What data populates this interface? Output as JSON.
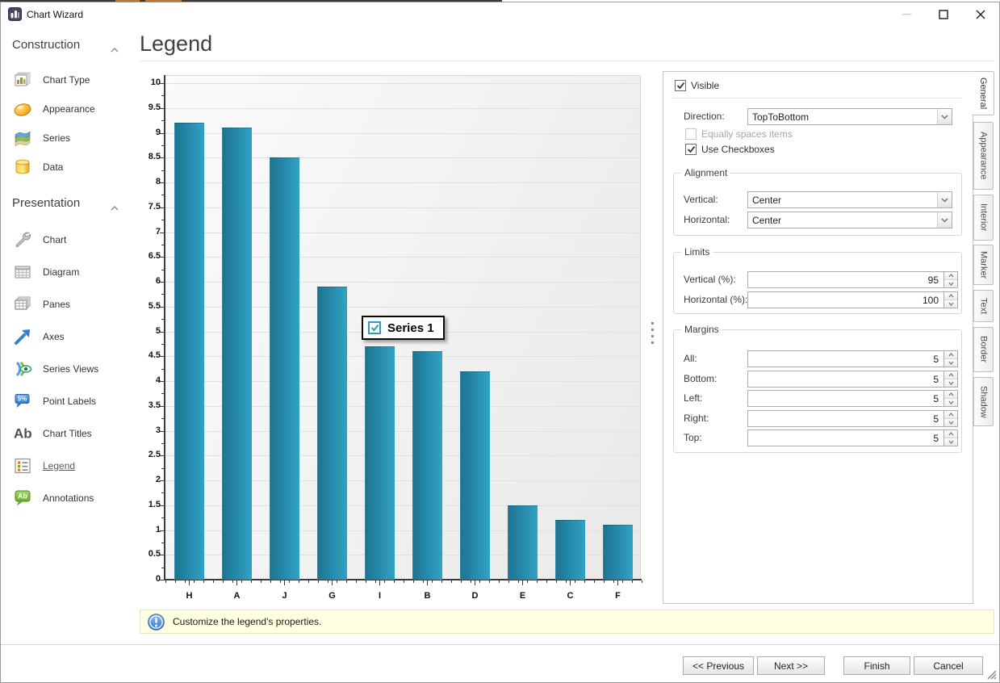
{
  "window": {
    "title": "Chart Wizard"
  },
  "sidebar": {
    "sections": [
      {
        "label": "Construction",
        "items": [
          {
            "label": "Chart Type",
            "icon": "chart-type-icon"
          },
          {
            "label": "Appearance",
            "icon": "appearance-icon"
          },
          {
            "label": "Series",
            "icon": "series-icon"
          },
          {
            "label": "Data",
            "icon": "data-icon"
          }
        ]
      },
      {
        "label": "Presentation",
        "items": [
          {
            "label": "Chart",
            "icon": "chart-icon"
          },
          {
            "label": "Diagram",
            "icon": "diagram-icon"
          },
          {
            "label": "Panes",
            "icon": "panes-icon"
          },
          {
            "label": "Axes",
            "icon": "axes-icon"
          },
          {
            "label": "Series Views",
            "icon": "series-views-icon"
          },
          {
            "label": "Point Labels",
            "icon": "point-labels-icon"
          },
          {
            "label": "Chart Titles",
            "icon": "chart-titles-icon"
          },
          {
            "label": "Legend",
            "icon": "legend-icon",
            "selected": true
          },
          {
            "label": "Annotations",
            "icon": "annotations-icon"
          }
        ]
      }
    ]
  },
  "main": {
    "title": "Legend"
  },
  "chart_data": {
    "type": "bar",
    "categories": [
      "H",
      "A",
      "J",
      "G",
      "I",
      "B",
      "D",
      "E",
      "C",
      "F"
    ],
    "values": [
      9.2,
      9.1,
      8.5,
      5.9,
      4.7,
      4.6,
      4.2,
      1.5,
      1.2,
      1.1
    ],
    "title": "",
    "xlabel": "",
    "ylabel": "",
    "ylim": [
      0,
      10
    ],
    "ytick_step": 0.5,
    "grid": true,
    "bar_color": "#2191b4",
    "legend": {
      "label": "Series 1",
      "checkbox": true,
      "checked": true,
      "position": "center-overlay"
    }
  },
  "properties": {
    "visible": {
      "label": "Visible",
      "checked": true
    },
    "direction": {
      "label": "Direction:",
      "value": "TopToBottom"
    },
    "equally_spaced": {
      "label": "Equally spaces items",
      "checked": false,
      "enabled": false
    },
    "use_checkboxes": {
      "label": "Use Checkboxes",
      "checked": true
    },
    "alignment": {
      "title": "Alignment",
      "rows": [
        {
          "label": "Vertical:",
          "value": "Center"
        },
        {
          "label": "Horizontal:",
          "value": "Center"
        }
      ]
    },
    "limits": {
      "title": "Limits",
      "rows": [
        {
          "label": "Vertical (%):",
          "value": "95"
        },
        {
          "label": "Horizontal (%):",
          "value": "100"
        }
      ]
    },
    "margins": {
      "title": "Margins",
      "rows": [
        {
          "label": "All:",
          "value": "5"
        },
        {
          "label": "Bottom:",
          "value": "5"
        },
        {
          "label": "Left:",
          "value": "5"
        },
        {
          "label": "Right:",
          "value": "5"
        },
        {
          "label": "Top:",
          "value": "5"
        }
      ]
    }
  },
  "side_tabs": [
    "General",
    "Appearance",
    "Interior",
    "Marker",
    "Text",
    "Border",
    "Shadow"
  ],
  "side_tabs_active": "General",
  "infobar": {
    "text": "Customize the legend's properties."
  },
  "footer": {
    "buttons": [
      {
        "label": "<< Previous"
      },
      {
        "label": "Next >>"
      },
      {
        "label": "Finish"
      },
      {
        "label": "Cancel"
      }
    ]
  }
}
